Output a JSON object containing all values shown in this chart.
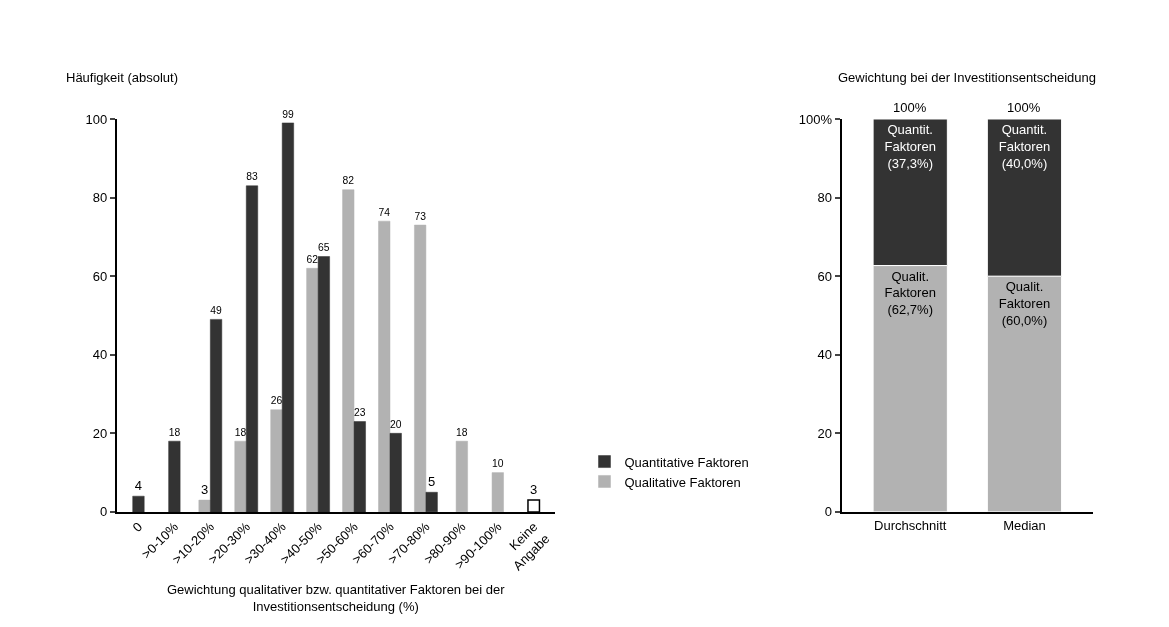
{
  "chart_data": [
    {
      "type": "bar",
      "xlabel": "Gewichtung qualitativer bzw. quantitativer Faktoren bei der\nInvestitionsentscheidung (%)",
      "ylabel": "Häufigkeit (absolut)",
      "categories": [
        "0",
        ">0-10%",
        ">10-20%",
        ">20-30%",
        ">30-40%",
        ">40-50%",
        ">50-60%",
        ">60-70%",
        ">70-80%",
        ">80-90%",
        ">90-100%",
        "Keine\nAngabe"
      ],
      "series": [
        {
          "name": "Qualitative Faktoren",
          "color": "#b2b2b2",
          "values": [
            null,
            null,
            3,
            18,
            26,
            62,
            82,
            74,
            73,
            18,
            10,
            null
          ]
        },
        {
          "name": "Quantitative Faktoren",
          "color": "#333333",
          "values": [
            4,
            18,
            49,
            83,
            99,
            65,
            23,
            20,
            5,
            null,
            null,
            null
          ]
        },
        {
          "color": "#ffffff",
          "values": [
            null,
            null,
            null,
            null,
            null,
            null,
            null,
            null,
            null,
            null,
            null,
            3
          ]
        }
      ],
      "ylim": [
        0,
        100
      ],
      "yticks": [
        0,
        20,
        40,
        60,
        80,
        100
      ],
      "data_labels": true,
      "legend": "right",
      "grid": false
    },
    {
      "type": "bar",
      "title": "Gewichtung bei der Investitionsentscheidung",
      "stacked": true,
      "categories": [
        "Durchschnitt",
        "Median"
      ],
      "series": [
        {
          "color": "#b2b2b2",
          "values": [
            62.7,
            60.0
          ],
          "value_labels": [
            "Qualit.\nFaktoren\n(62,7%)",
            "Qualit.\nFaktoren\n(60,0%)"
          ]
        },
        {
          "color": "#333333",
          "values": [
            37.3,
            40.0
          ],
          "value_labels": [
            "Quantit.\nFaktoren\n(37,3%)",
            "Quantit.\nFaktoren\n(40,0%)"
          ]
        }
      ],
      "totals": [
        "100%",
        "100%"
      ],
      "ylim": [
        0,
        100
      ],
      "yticks": [
        0,
        20,
        40,
        60,
        80,
        {
          "value": 100,
          "label": "100%"
        }
      ],
      "legend": false,
      "grid": false
    }
  ]
}
